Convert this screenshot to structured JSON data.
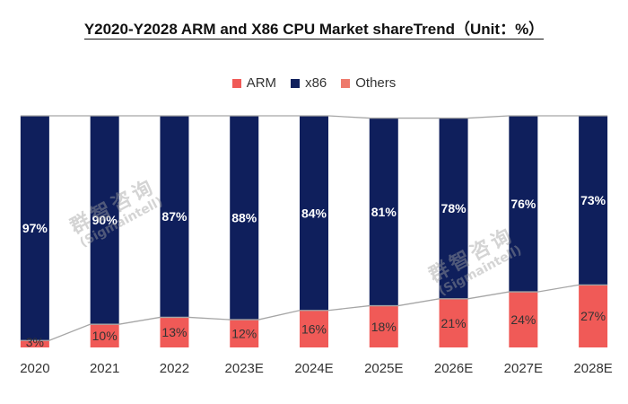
{
  "chart_data": {
    "type": "bar",
    "stacked": true,
    "title": "Y2020-Y2028 ARM and X86 CPU Market shareTrend（Unit：%）",
    "categories": [
      "2020",
      "2021",
      "2022",
      "2023E",
      "2024E",
      "2025E",
      "2026E",
      "2027E",
      "2028E"
    ],
    "series": [
      {
        "name": "ARM",
        "values": [
          3,
          10,
          13,
          12,
          16,
          18,
          21,
          24,
          27
        ],
        "color": "#f05a57",
        "labels": [
          "3%",
          "10%",
          "13%",
          "12%",
          "16%",
          "18%",
          "21%",
          "24%",
          "27%"
        ]
      },
      {
        "name": "x86",
        "values": [
          97,
          90,
          87,
          88,
          84,
          81,
          78,
          76,
          73
        ],
        "color": "#0f1f5c",
        "labels": [
          "97%",
          "90%",
          "87%",
          "88%",
          "84%",
          "81%",
          "78%",
          "76%",
          "73%"
        ]
      },
      {
        "name": "Others",
        "values": [
          0,
          0,
          0,
          0,
          0,
          0,
          0,
          0,
          0
        ],
        "color": "#ee7a6c",
        "labels": []
      }
    ],
    "ylim": [
      0,
      100
    ],
    "xlabel": "",
    "ylabel": "",
    "legend_position": "top-center"
  },
  "watermarks": [
    {
      "cn": "群智咨询",
      "en": "(Sigmaintell)"
    },
    {
      "cn": "群智咨询",
      "en": "(Sigmaintell)"
    }
  ]
}
